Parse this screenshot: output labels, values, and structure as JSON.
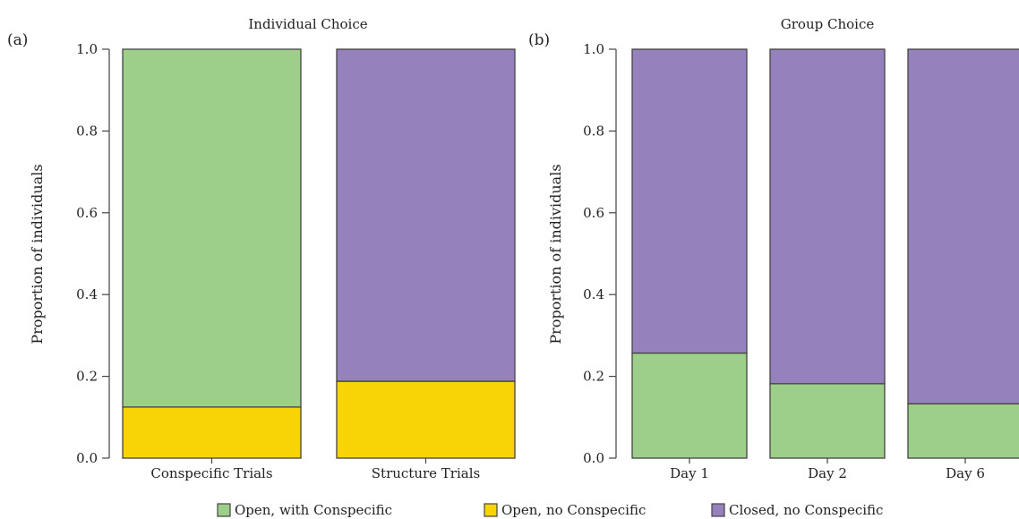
{
  "legend": [
    {
      "label": "Open, with Conspecific",
      "color": "#9dce8a"
    },
    {
      "label": "Open, no Conspecific",
      "color": "#f8d407"
    },
    {
      "label": "Closed, no Conspecific",
      "color": "#9581bc"
    }
  ],
  "chart_data": [
    {
      "type": "bar",
      "stacked": true,
      "panel_label": "(a)",
      "title": "Individual Choice",
      "xlabel": "",
      "ylabel": "Proportion of individuals",
      "ylim": [
        0,
        1
      ],
      "yticks": [
        "0.0",
        "0.2",
        "0.4",
        "0.6",
        "0.8",
        "1.0"
      ],
      "categories": [
        "Conspecific Trials",
        "Structure Trials"
      ],
      "series": [
        {
          "name": "Open, no Conspecific",
          "color": "#f8d407",
          "values": [
            0.125,
            0.188
          ]
        },
        {
          "name": "Open, with Conspecific",
          "color": "#9dce8a",
          "values": [
            0.875,
            0
          ]
        },
        {
          "name": "Closed, no Conspecific",
          "color": "#9581bc",
          "values": [
            0,
            0.812
          ]
        }
      ]
    },
    {
      "type": "bar",
      "stacked": true,
      "panel_label": "(b)",
      "title": "Group Choice",
      "xlabel": "",
      "ylabel": "Proportion of individuals",
      "ylim": [
        0,
        1
      ],
      "yticks": [
        "0.0",
        "0.2",
        "0.4",
        "0.6",
        "0.8",
        "1.0"
      ],
      "categories": [
        "Day 1",
        "Day 2",
        "Day 6"
      ],
      "series": [
        {
          "name": "Open, with Conspecific",
          "color": "#9dce8a",
          "values": [
            0.257,
            0.182,
            0.133
          ]
        },
        {
          "name": "Closed, no Conspecific",
          "color": "#9581bc",
          "values": [
            0.743,
            0.818,
            0.867
          ]
        }
      ]
    }
  ]
}
